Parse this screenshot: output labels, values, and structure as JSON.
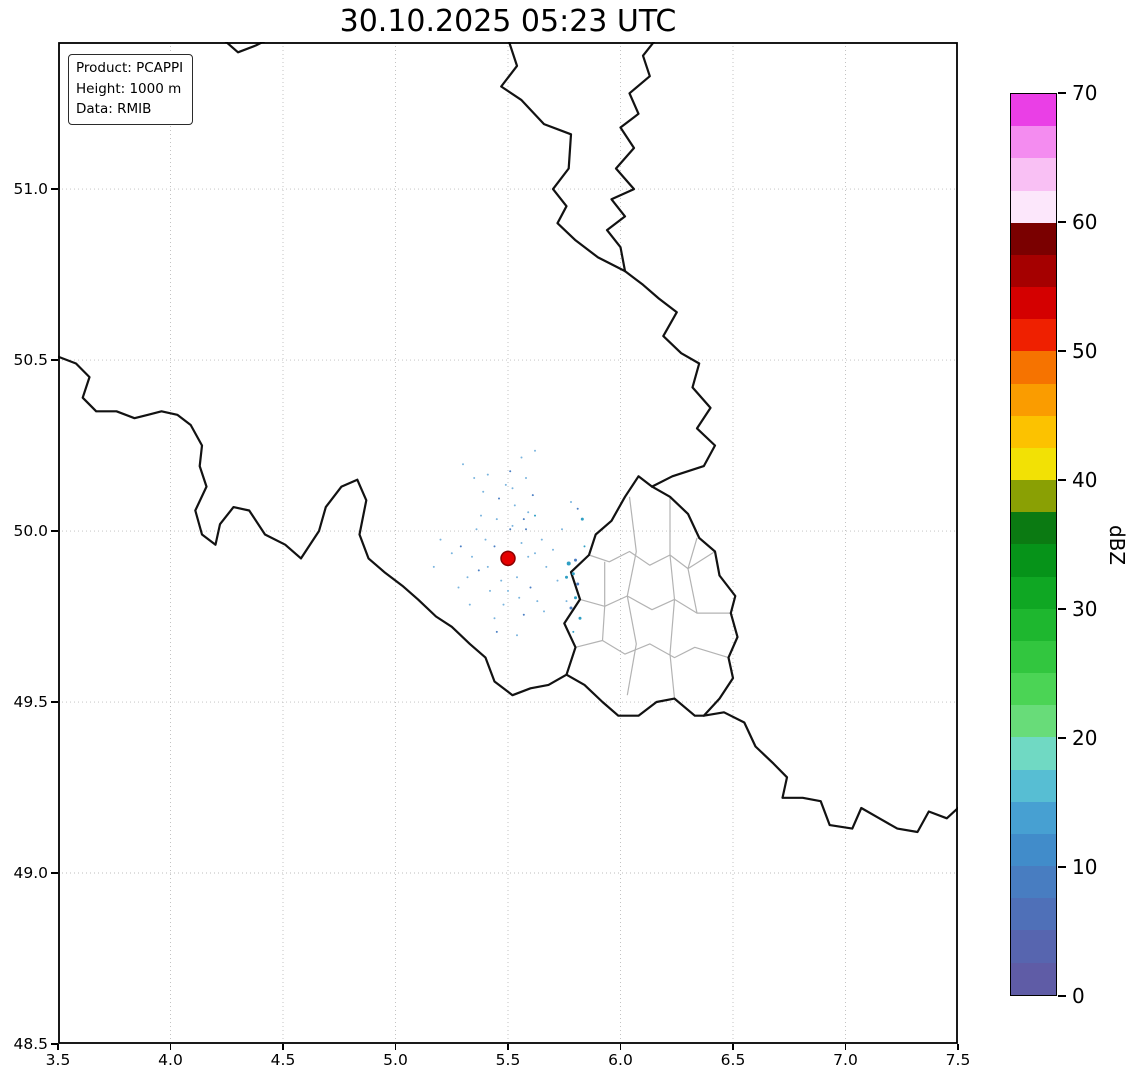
{
  "title": "30.10.2025 05:23 UTC",
  "info_box": {
    "product": "Product: PCAPPI",
    "height": "Height: 1000 m",
    "data_source": "Data: RMIB"
  },
  "chart_data": {
    "type": "heatmap",
    "title": "30.10.2025 05:23 UTC",
    "description": "Weather radar PCAPPI reflectivity map over Belgium / Luxembourg / Germany border region; near-empty field with speckle echoes around the radar site",
    "grid": true,
    "xlim": [
      3.5,
      7.5
    ],
    "ylim": [
      48.5,
      51.43
    ],
    "x_tick_values": [
      3.5,
      4.0,
      4.5,
      5.0,
      5.5,
      6.0,
      6.5,
      7.0,
      7.5
    ],
    "x_tick_labels": [
      "3.5",
      "4.0",
      "4.5",
      "5.0",
      "5.5",
      "6.0",
      "6.5",
      "7.0",
      "7.5"
    ],
    "y_tick_values": [
      48.5,
      49.0,
      49.5,
      50.0,
      50.5,
      51.0
    ],
    "y_tick_labels": [
      "48.5",
      "49.0",
      "49.5",
      "50.0",
      "50.5",
      "51.0"
    ],
    "colorbar": {
      "label": "dBZ",
      "min": 0,
      "max": 70,
      "tick_values": [
        0,
        10,
        20,
        30,
        40,
        50,
        60,
        70
      ],
      "tick_labels": [
        "0",
        "10",
        "20",
        "30",
        "40",
        "50",
        "60",
        "70"
      ],
      "segments": [
        [
          0,
          2.5,
          "#5f5ca6"
        ],
        [
          2.5,
          5,
          "#5765af"
        ],
        [
          5,
          7.5,
          "#4f70b8"
        ],
        [
          7.5,
          10,
          "#487dc1"
        ],
        [
          10,
          12.5,
          "#418cca"
        ],
        [
          12.5,
          15,
          "#47a0d2"
        ],
        [
          15,
          17.5,
          "#57bed3"
        ],
        [
          17.5,
          20,
          "#70d9c3"
        ],
        [
          20,
          22.5,
          "#68dc79"
        ],
        [
          22.5,
          25,
          "#4bd455"
        ],
        [
          25,
          27.5,
          "#32c63f"
        ],
        [
          27.5,
          30,
          "#1eb72f"
        ],
        [
          30,
          32.5,
          "#0fa723"
        ],
        [
          32.5,
          35,
          "#069319"
        ],
        [
          35,
          37.5,
          "#0b7a12"
        ],
        [
          37.5,
          40,
          "#8aa004"
        ],
        [
          40,
          42.5,
          "#f2e105"
        ],
        [
          42.5,
          45,
          "#fcc200"
        ],
        [
          45,
          47.5,
          "#fa9c00"
        ],
        [
          47.5,
          50,
          "#f67300"
        ],
        [
          50,
          52.5,
          "#ef2000"
        ],
        [
          52.5,
          55,
          "#d40000"
        ],
        [
          55,
          57.5,
          "#a50000"
        ],
        [
          57.5,
          60,
          "#7a0000"
        ],
        [
          60,
          62.5,
          "#fce7fb"
        ],
        [
          62.5,
          65,
          "#f9c0f4"
        ],
        [
          65,
          67.5,
          "#f48cf0"
        ],
        [
          67.5,
          70,
          "#ea3fe6"
        ]
      ]
    },
    "radar_site": {
      "lon": 5.5,
      "lat": 49.92,
      "color": "#e60000",
      "edge": "#8b0000"
    },
    "echo_colors": [
      "#79b4de",
      "#4b7fc4",
      "#2f9fc4"
    ],
    "echo_points": [
      [
        5.52,
        50.015,
        1,
        0
      ],
      [
        5.45,
        50.035,
        1,
        0
      ],
      [
        5.58,
        50.005,
        1,
        1
      ],
      [
        5.4,
        49.975,
        1,
        0
      ],
      [
        5.62,
        49.935,
        1,
        0
      ],
      [
        5.37,
        49.885,
        1,
        1
      ],
      [
        5.55,
        49.805,
        1,
        0
      ],
      [
        5.48,
        49.785,
        1,
        0
      ],
      [
        5.6,
        49.835,
        1,
        1
      ],
      [
        5.42,
        49.825,
        1,
        0
      ],
      [
        5.65,
        49.975,
        1,
        0
      ],
      [
        5.34,
        49.925,
        1,
        0
      ],
      [
        5.53,
        50.075,
        1,
        0
      ],
      [
        5.46,
        50.095,
        1,
        1
      ],
      [
        5.59,
        50.055,
        1,
        0
      ],
      [
        5.38,
        50.045,
        1,
        0
      ],
      [
        5.67,
        49.895,
        1,
        0
      ],
      [
        5.32,
        49.865,
        1,
        0
      ],
      [
        5.57,
        49.755,
        1,
        1
      ],
      [
        5.44,
        49.745,
        1,
        0
      ],
      [
        5.63,
        49.795,
        1,
        0
      ],
      [
        5.36,
        50.005,
        1,
        0
      ],
      [
        5.7,
        49.945,
        1,
        0
      ],
      [
        5.29,
        49.955,
        1,
        1
      ],
      [
        5.52,
        50.125,
        1,
        0
      ],
      [
        5.49,
        50.135,
        1,
        0
      ],
      [
        5.61,
        50.105,
        1,
        1
      ],
      [
        5.39,
        50.115,
        1,
        0
      ],
      [
        5.72,
        49.855,
        1,
        0
      ],
      [
        5.28,
        49.835,
        1,
        0
      ],
      [
        5.54,
        49.695,
        1,
        0
      ],
      [
        5.45,
        49.705,
        1,
        1
      ],
      [
        5.66,
        49.765,
        1,
        0
      ],
      [
        5.33,
        49.785,
        1,
        0
      ],
      [
        5.74,
        50.005,
        1,
        0
      ],
      [
        5.25,
        49.935,
        1,
        0
      ],
      [
        5.51,
        50.175,
        1,
        1
      ],
      [
        5.58,
        50.155,
        1,
        0
      ],
      [
        5.41,
        50.165,
        1,
        0
      ],
      [
        5.76,
        49.795,
        1,
        0
      ],
      [
        5.56,
        49.965,
        1,
        0
      ],
      [
        5.44,
        49.955,
        1,
        1
      ],
      [
        5.54,
        49.865,
        1,
        0
      ],
      [
        5.47,
        49.855,
        1,
        0
      ],
      [
        5.59,
        49.925,
        1,
        0
      ],
      [
        5.41,
        49.895,
        1,
        0
      ],
      [
        5.51,
        50.005,
        1,
        1
      ],
      [
        5.5,
        49.825,
        1,
        0
      ],
      [
        5.56,
        50.215,
        1,
        0
      ],
      [
        5.2,
        49.975,
        1,
        0
      ],
      [
        5.78,
        50.085,
        1,
        0
      ],
      [
        5.17,
        49.895,
        1,
        0
      ],
      [
        5.62,
        50.235,
        1,
        0
      ],
      [
        5.3,
        50.195,
        1,
        0
      ],
      [
        5.35,
        50.155,
        1,
        0
      ],
      [
        5.77,
        49.905,
        2,
        2
      ],
      [
        5.79,
        49.875,
        1.5,
        2
      ],
      [
        5.81,
        49.845,
        1.5,
        1
      ],
      [
        5.8,
        49.805,
        1.5,
        2
      ],
      [
        5.78,
        49.775,
        1.5,
        1
      ],
      [
        5.82,
        49.745,
        1.5,
        2
      ],
      [
        5.76,
        49.865,
        1.5,
        2
      ],
      [
        5.8,
        49.915,
        1.5,
        1
      ],
      [
        5.83,
        50.035,
        1.5,
        2
      ],
      [
        5.81,
        50.065,
        1,
        1
      ],
      [
        5.79,
        49.705,
        1,
        2
      ],
      [
        5.84,
        49.955,
        1,
        2
      ],
      [
        5.62,
        50.045,
        1,
        2
      ],
      [
        5.57,
        50.035,
        1,
        1
      ]
    ],
    "borders": {
      "country": [
        [
          [
            5.5,
            51.44
          ],
          [
            5.54,
            51.36
          ],
          [
            5.47,
            51.3
          ],
          [
            5.56,
            51.26
          ],
          [
            5.66,
            51.19
          ],
          [
            5.78,
            51.16
          ],
          [
            5.77,
            51.06
          ],
          [
            5.7,
            51.0
          ],
          [
            5.76,
            50.95
          ],
          [
            5.72,
            50.9
          ],
          [
            5.8,
            50.85
          ],
          [
            5.9,
            50.8
          ],
          [
            6.02,
            50.76
          ]
        ],
        [
          [
            6.16,
            51.44
          ],
          [
            6.1,
            51.39
          ],
          [
            6.13,
            51.33
          ],
          [
            6.04,
            51.28
          ],
          [
            6.08,
            51.22
          ],
          [
            6.0,
            51.18
          ],
          [
            6.06,
            51.12
          ],
          [
            5.98,
            51.06
          ],
          [
            6.06,
            51.0
          ],
          [
            5.96,
            50.97
          ],
          [
            6.02,
            50.92
          ],
          [
            5.94,
            50.88
          ],
          [
            6.0,
            50.83
          ],
          [
            6.02,
            50.76
          ]
        ],
        [
          [
            6.02,
            50.76
          ],
          [
            6.1,
            50.72
          ],
          [
            6.17,
            50.68
          ],
          [
            6.25,
            50.64
          ],
          [
            6.19,
            50.57
          ],
          [
            6.27,
            50.52
          ],
          [
            6.35,
            50.49
          ],
          [
            6.32,
            50.42
          ],
          [
            6.4,
            50.36
          ],
          [
            6.34,
            50.3
          ],
          [
            6.42,
            50.25
          ],
          [
            6.37,
            50.19
          ],
          [
            6.23,
            50.16
          ],
          [
            6.14,
            50.13
          ]
        ],
        [
          [
            6.14,
            50.13
          ],
          [
            6.08,
            50.16
          ],
          [
            6.02,
            50.1
          ],
          [
            5.96,
            50.03
          ],
          [
            5.89,
            49.99
          ],
          [
            5.86,
            49.93
          ],
          [
            5.78,
            49.88
          ],
          [
            5.82,
            49.8
          ],
          [
            5.75,
            49.73
          ],
          [
            5.8,
            49.66
          ],
          [
            5.76,
            49.58
          ],
          [
            5.84,
            49.55
          ],
          [
            5.92,
            49.5
          ],
          [
            5.99,
            49.46
          ],
          [
            6.08,
            49.46
          ],
          [
            6.16,
            49.5
          ],
          [
            6.24,
            49.51
          ],
          [
            6.33,
            49.46
          ],
          [
            6.37,
            49.46
          ],
          [
            6.44,
            49.51
          ],
          [
            6.5,
            49.57
          ],
          [
            6.48,
            49.63
          ],
          [
            6.52,
            49.69
          ],
          [
            6.49,
            49.76
          ],
          [
            6.51,
            49.81
          ],
          [
            6.44,
            49.87
          ],
          [
            6.42,
            49.94
          ],
          [
            6.35,
            49.98
          ],
          [
            6.3,
            50.05
          ],
          [
            6.22,
            50.1
          ],
          [
            6.14,
            50.13
          ]
        ],
        [
          [
            3.5,
            50.51
          ],
          [
            3.58,
            50.49
          ],
          [
            3.64,
            50.45
          ],
          [
            3.61,
            50.39
          ],
          [
            3.67,
            50.35
          ],
          [
            3.76,
            50.35
          ],
          [
            3.84,
            50.33
          ],
          [
            3.9,
            50.34
          ],
          [
            3.96,
            50.35
          ],
          [
            4.03,
            50.34
          ],
          [
            4.09,
            50.31
          ],
          [
            4.14,
            50.25
          ],
          [
            4.13,
            50.19
          ],
          [
            4.16,
            50.13
          ],
          [
            4.11,
            50.06
          ],
          [
            4.14,
            49.99
          ],
          [
            4.2,
            49.96
          ],
          [
            4.22,
            50.02
          ],
          [
            4.28,
            50.07
          ],
          [
            4.35,
            50.06
          ],
          [
            4.42,
            49.99
          ],
          [
            4.51,
            49.96
          ],
          [
            4.58,
            49.92
          ],
          [
            4.66,
            50.0
          ],
          [
            4.69,
            50.07
          ],
          [
            4.76,
            50.13
          ],
          [
            4.83,
            50.15
          ],
          [
            4.87,
            50.09
          ],
          [
            4.84,
            49.99
          ],
          [
            4.88,
            49.92
          ],
          [
            4.95,
            49.88
          ],
          [
            5.03,
            49.84
          ],
          [
            5.1,
            49.8
          ],
          [
            5.18,
            49.75
          ],
          [
            5.25,
            49.72
          ],
          [
            5.33,
            49.67
          ],
          [
            5.4,
            49.63
          ],
          [
            5.44,
            49.56
          ],
          [
            5.52,
            49.52
          ],
          [
            5.6,
            49.54
          ],
          [
            5.68,
            49.55
          ],
          [
            5.76,
            49.58
          ]
        ],
        [
          [
            6.37,
            49.46
          ],
          [
            6.46,
            49.47
          ],
          [
            6.55,
            49.44
          ],
          [
            6.6,
            49.37
          ],
          [
            6.68,
            49.32
          ],
          [
            6.74,
            49.28
          ],
          [
            6.72,
            49.22
          ],
          [
            6.81,
            49.22
          ],
          [
            6.89,
            49.21
          ],
          [
            6.93,
            49.14
          ],
          [
            7.03,
            49.13
          ],
          [
            7.07,
            49.19
          ],
          [
            7.15,
            49.16
          ],
          [
            7.23,
            49.13
          ],
          [
            7.32,
            49.12
          ],
          [
            7.37,
            49.18
          ],
          [
            7.45,
            49.16
          ],
          [
            7.5,
            49.19
          ]
        ],
        [
          [
            4.23,
            51.44
          ],
          [
            4.3,
            51.4
          ],
          [
            4.38,
            51.42
          ],
          [
            4.44,
            51.44
          ]
        ]
      ],
      "districts": [
        [
          [
            5.86,
            49.93
          ],
          [
            5.95,
            49.91
          ],
          [
            6.04,
            49.94
          ],
          [
            6.13,
            49.9
          ],
          [
            6.22,
            49.93
          ],
          [
            6.3,
            49.89
          ],
          [
            6.42,
            49.94
          ]
        ],
        [
          [
            5.82,
            49.8
          ],
          [
            5.93,
            49.78
          ],
          [
            6.03,
            49.81
          ],
          [
            6.14,
            49.77
          ],
          [
            6.24,
            49.8
          ],
          [
            6.34,
            49.76
          ],
          [
            6.49,
            49.76
          ]
        ],
        [
          [
            5.8,
            49.66
          ],
          [
            5.92,
            49.68
          ],
          [
            6.02,
            49.64
          ],
          [
            6.13,
            49.67
          ],
          [
            6.24,
            49.63
          ],
          [
            6.33,
            49.66
          ],
          [
            6.48,
            49.63
          ]
        ],
        [
          [
            6.04,
            50.1
          ],
          [
            6.07,
            49.94
          ],
          [
            6.03,
            49.81
          ],
          [
            6.07,
            49.67
          ],
          [
            6.03,
            49.52
          ]
        ],
        [
          [
            6.22,
            50.1
          ],
          [
            6.22,
            49.93
          ],
          [
            6.24,
            49.8
          ],
          [
            6.22,
            49.64
          ],
          [
            6.24,
            49.51
          ]
        ],
        [
          [
            5.93,
            49.91
          ],
          [
            5.93,
            49.78
          ],
          [
            5.92,
            49.68
          ]
        ],
        [
          [
            6.34,
            49.98
          ],
          [
            6.3,
            49.89
          ],
          [
            6.34,
            49.76
          ]
        ]
      ]
    }
  }
}
